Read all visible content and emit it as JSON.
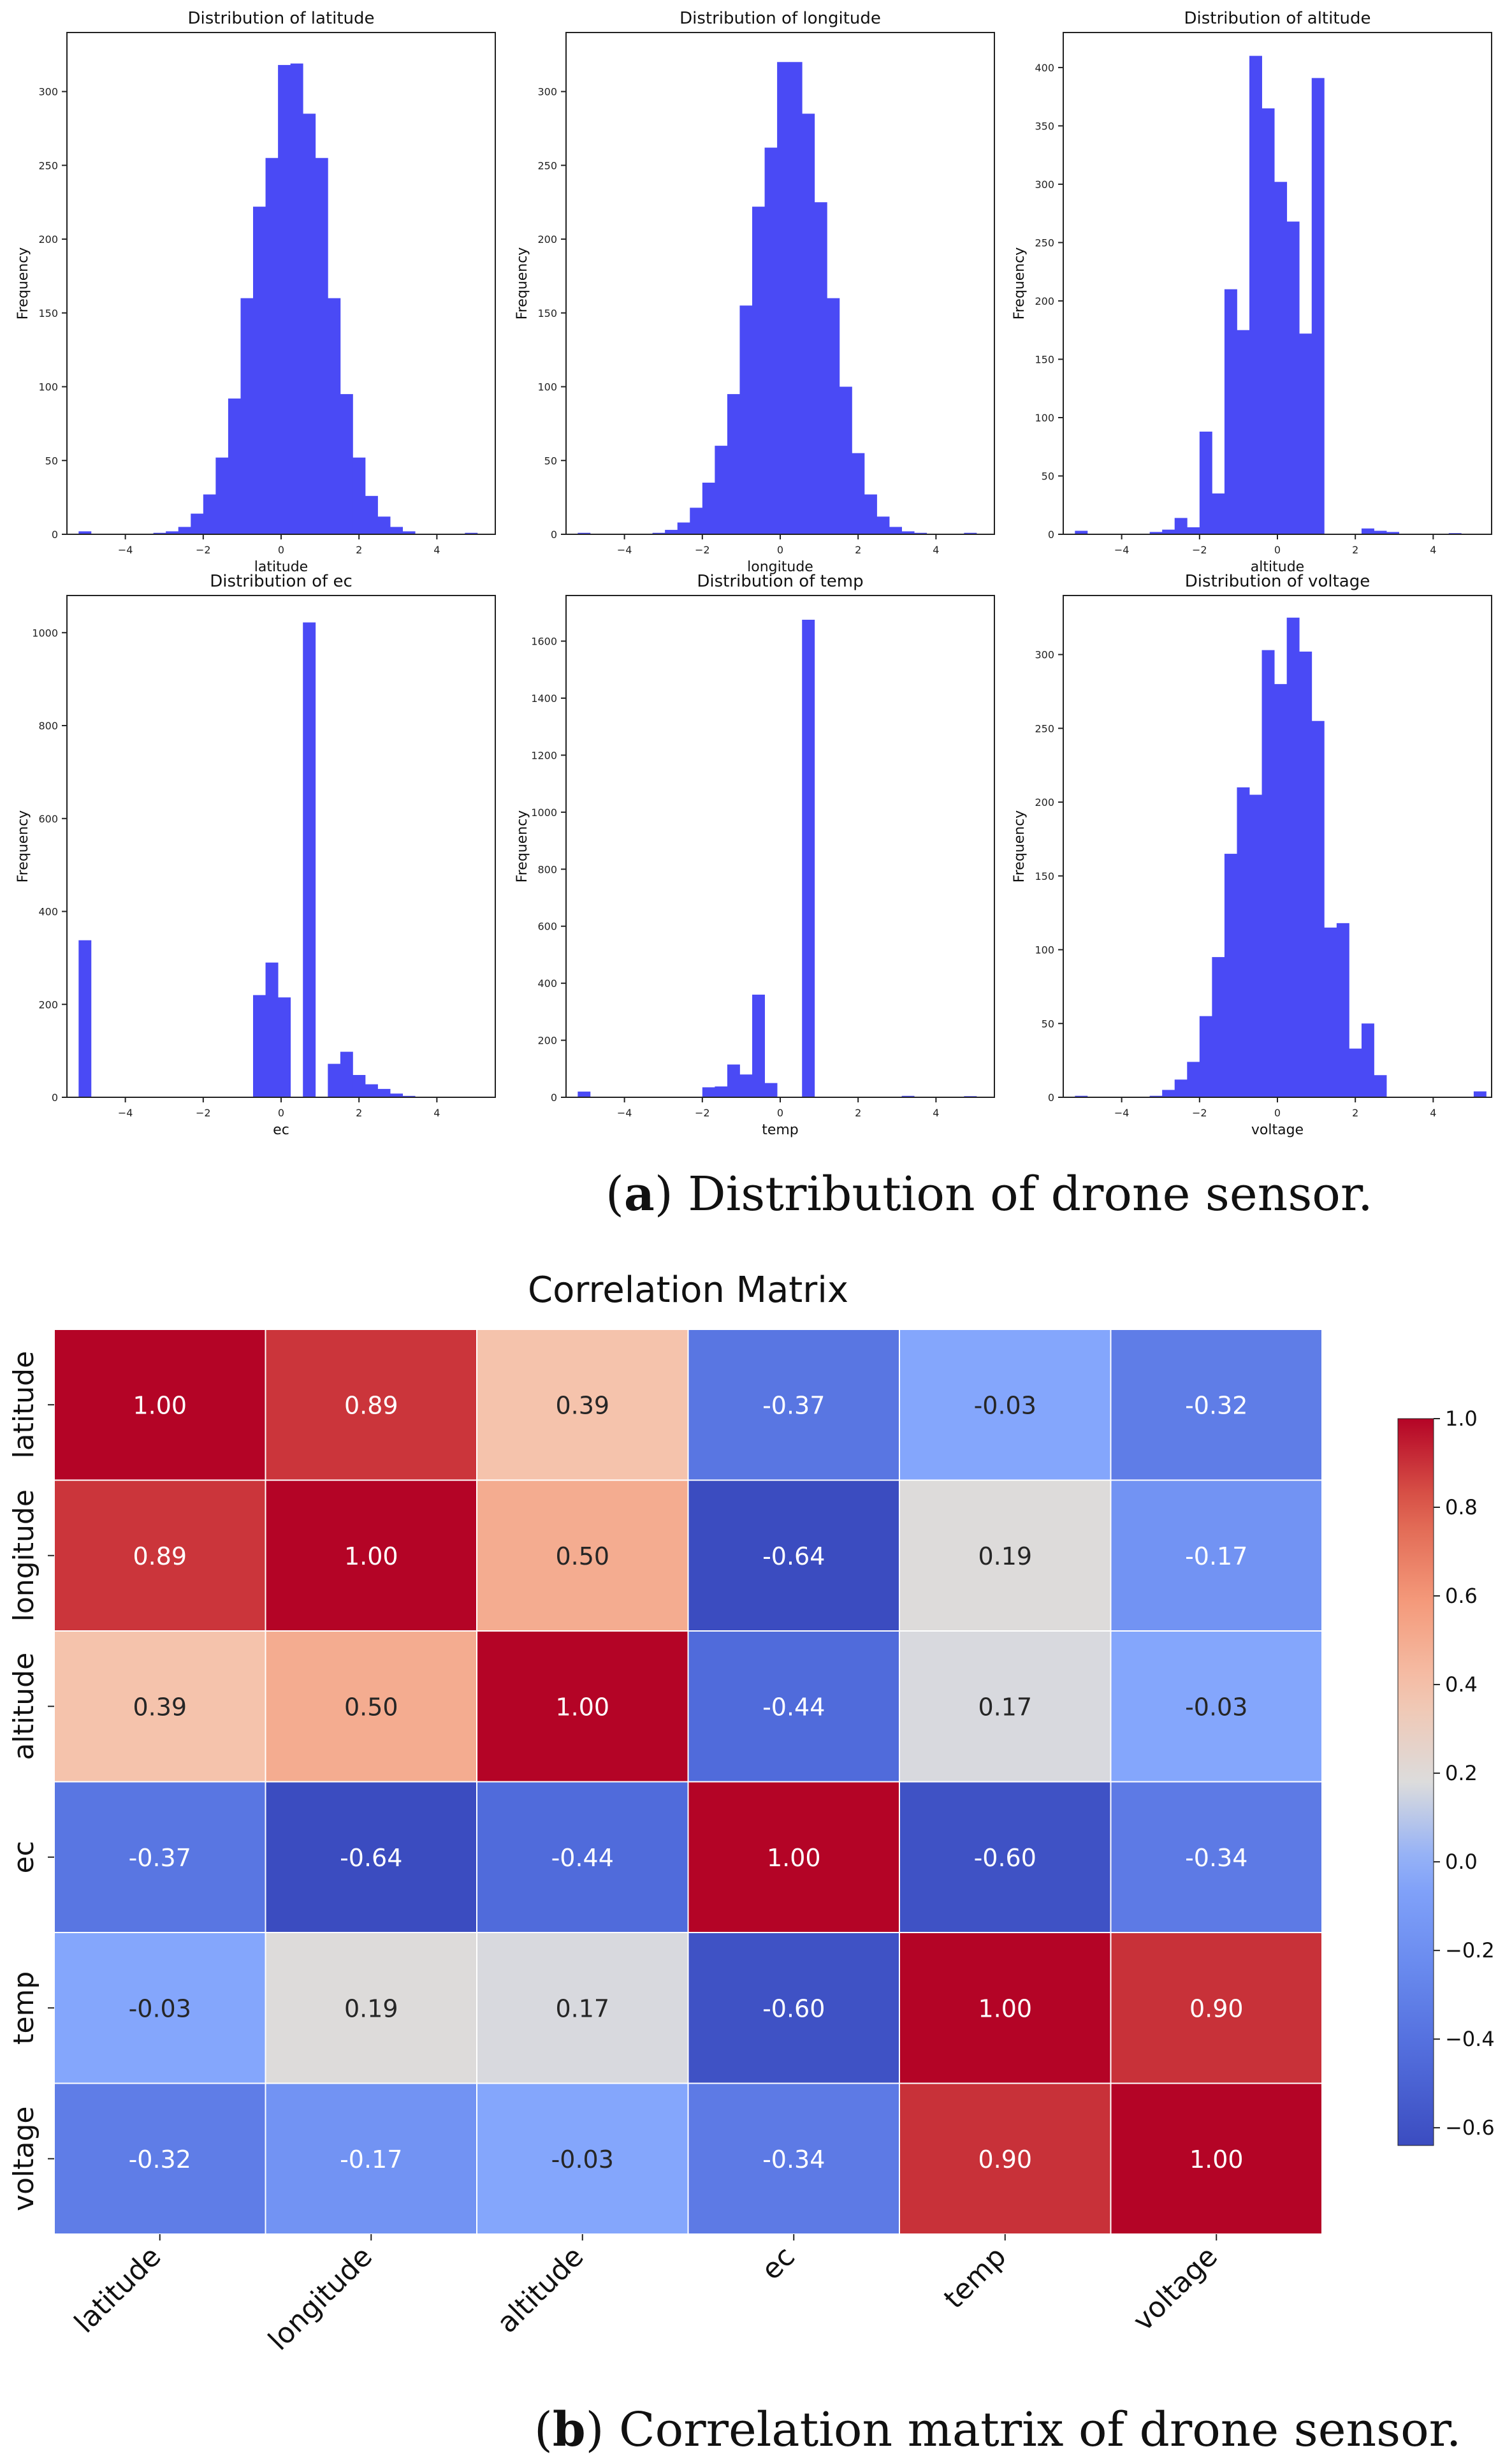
{
  "histograms": {
    "caption": {
      "letter": "a",
      "text": "Distribution of drone sensor."
    },
    "x_ticks": [
      -4,
      -2,
      0,
      2,
      4
    ],
    "bin_start": -5.2,
    "bin_width": 0.32,
    "bar_color": "#4a4af5"
  },
  "chart_data": [
    {
      "type": "bar",
      "title": "Distribution of latitude",
      "xlabel": "latitude",
      "ylabel": "Frequency",
      "xlim": [
        -5.5,
        5.5
      ],
      "ylim": [
        0,
        340
      ],
      "yticks": [
        0,
        50,
        100,
        150,
        200,
        250,
        300
      ],
      "values": [
        2,
        0,
        0,
        0,
        0,
        0,
        1,
        2,
        5,
        14,
        27,
        52,
        92,
        160,
        222,
        255,
        318,
        319,
        285,
        255,
        160,
        95,
        52,
        26,
        12,
        5,
        2,
        0,
        0,
        0,
        0,
        1,
        0
      ]
    },
    {
      "type": "bar",
      "title": "Distribution of longitude",
      "xlabel": "longitude",
      "ylabel": "Frequency",
      "xlim": [
        -5.5,
        5.5
      ],
      "ylim": [
        0,
        340
      ],
      "yticks": [
        0,
        50,
        100,
        150,
        200,
        250,
        300
      ],
      "values": [
        1,
        0,
        0,
        0,
        0,
        0,
        1,
        3,
        8,
        18,
        35,
        60,
        95,
        155,
        222,
        262,
        320,
        320,
        285,
        225,
        160,
        100,
        55,
        27,
        12,
        5,
        2,
        1,
        0,
        0,
        0,
        1,
        0
      ]
    },
    {
      "type": "bar",
      "title": "Distribution of altitude",
      "xlabel": "altitude",
      "ylabel": "Frequency",
      "xlim": [
        -5.5,
        5.5
      ],
      "ylim": [
        0,
        430
      ],
      "yticks": [
        0,
        50,
        100,
        150,
        200,
        250,
        300,
        350,
        400
      ],
      "values": [
        3,
        0,
        0,
        0,
        0,
        0,
        2,
        4,
        14,
        6,
        88,
        35,
        210,
        175,
        410,
        365,
        302,
        268,
        172,
        391,
        0,
        0,
        0,
        5,
        3,
        2,
        0,
        0,
        0,
        0,
        1,
        0,
        0
      ]
    },
    {
      "type": "bar",
      "title": "Distribution of ec",
      "xlabel": "ec",
      "ylabel": "Frequency",
      "xlim": [
        -5.5,
        5.5
      ],
      "ylim": [
        0,
        1080
      ],
      "yticks": [
        0,
        200,
        400,
        600,
        800,
        1000
      ],
      "values": [
        338,
        0,
        0,
        0,
        0,
        0,
        0,
        0,
        0,
        0,
        0,
        0,
        0,
        0,
        220,
        290,
        215,
        0,
        1022,
        0,
        72,
        98,
        48,
        28,
        18,
        8,
        3,
        0,
        0,
        0,
        0,
        1,
        0
      ]
    },
    {
      "type": "bar",
      "title": "Distribution of temp",
      "xlabel": "temp",
      "ylabel": "Frequency",
      "xlim": [
        -5.5,
        5.5
      ],
      "ylim": [
        0,
        1760
      ],
      "yticks": [
        0,
        200,
        400,
        600,
        800,
        1000,
        1200,
        1400,
        1600
      ],
      "values": [
        20,
        0,
        0,
        0,
        0,
        0,
        0,
        0,
        0,
        0,
        35,
        38,
        115,
        80,
        360,
        50,
        0,
        0,
        1675,
        0,
        0,
        0,
        0,
        0,
        0,
        0,
        5,
        0,
        0,
        0,
        0,
        4,
        0
      ]
    },
    {
      "type": "bar",
      "title": "Distribution of voltage",
      "xlabel": "voltage",
      "ylabel": "Frequency",
      "xlim": [
        -5.5,
        5.5
      ],
      "ylim": [
        0,
        340
      ],
      "yticks": [
        0,
        50,
        100,
        150,
        200,
        250,
        300
      ],
      "values": [
        1,
        0,
        0,
        0,
        0,
        0,
        1,
        5,
        12,
        24,
        55,
        95,
        165,
        210,
        205,
        303,
        280,
        325,
        302,
        255,
        115,
        118,
        33,
        50,
        15,
        0,
        0,
        0,
        0,
        0,
        0,
        0,
        4
      ]
    },
    {
      "type": "heatmap",
      "title": "Correlation Matrix",
      "labels": [
        "latitude",
        "longitude",
        "altitude",
        "ec",
        "temp",
        "voltage"
      ],
      "matrix": [
        [
          1.0,
          0.89,
          0.39,
          -0.37,
          -0.03,
          -0.32
        ],
        [
          0.89,
          1.0,
          0.5,
          -0.64,
          0.19,
          -0.17
        ],
        [
          0.39,
          0.5,
          1.0,
          -0.44,
          0.17,
          -0.03
        ],
        [
          -0.37,
          -0.64,
          -0.44,
          1.0,
          -0.6,
          -0.34
        ],
        [
          -0.03,
          0.19,
          0.17,
          -0.6,
          1.0,
          0.9
        ],
        [
          -0.32,
          -0.17,
          -0.03,
          -0.34,
          0.9,
          1.0
        ]
      ],
      "colorbar": {
        "min": -0.64,
        "max": 1.0,
        "ticks": [
          1.0,
          0.8,
          0.6,
          0.4,
          0.2,
          0.0,
          -0.2,
          -0.4,
          -0.6
        ]
      }
    }
  ],
  "correlation": {
    "caption": {
      "letter": "b",
      "text": "Correlation matrix of drone sensor."
    }
  }
}
